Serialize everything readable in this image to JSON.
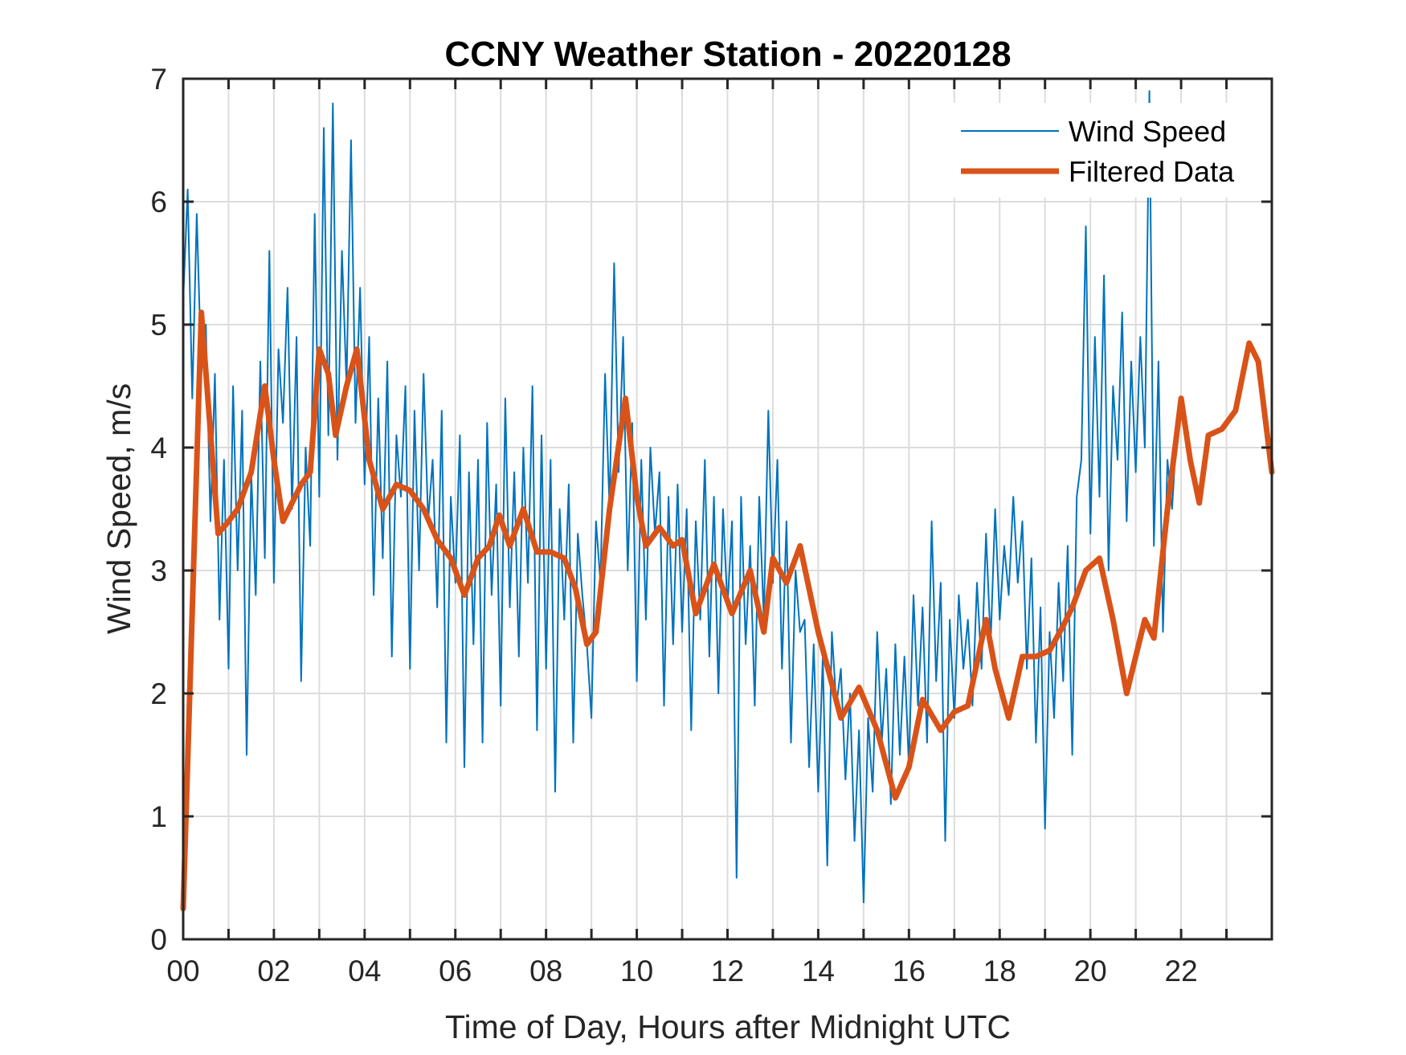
{
  "chart_data": {
    "type": "line",
    "title": "CCNY Weather Station - 20220128",
    "xlabel": "Time of Day, Hours after Midnight UTC",
    "ylabel": "Wind Speed, m/s",
    "xlim": [
      0,
      24
    ],
    "ylim": [
      0,
      7
    ],
    "grid": true,
    "x_ticks": [
      0,
      2,
      4,
      6,
      8,
      10,
      12,
      14,
      16,
      18,
      20,
      22
    ],
    "x_tick_labels": [
      "00",
      "02",
      "04",
      "06",
      "08",
      "10",
      "12",
      "14",
      "16",
      "18",
      "20",
      "22"
    ],
    "x_minor_grid_step": 1,
    "y_ticks": [
      0,
      1,
      2,
      3,
      4,
      5,
      6,
      7
    ],
    "y_tick_labels": [
      "0",
      "1",
      "2",
      "3",
      "4",
      "5",
      "6",
      "7"
    ],
    "legend": {
      "placement": "top-right",
      "entries": [
        "Wind Speed",
        "Filtered Data"
      ]
    },
    "series": [
      {
        "name": "Wind Speed",
        "color": "#0072BD",
        "x_step": 0.1,
        "values": [
          5.2,
          6.1,
          4.4,
          5.9,
          4.6,
          5.0,
          3.4,
          4.6,
          2.6,
          3.9,
          2.2,
          4.5,
          3.0,
          4.3,
          1.5,
          3.8,
          2.8,
          4.7,
          3.1,
          5.6,
          2.9,
          4.8,
          4.2,
          5.3,
          3.5,
          4.9,
          2.1,
          4.0,
          3.2,
          5.9,
          3.6,
          6.6,
          4.1,
          6.8,
          3.9,
          5.6,
          4.5,
          6.5,
          4.2,
          5.3,
          3.7,
          4.9,
          2.8,
          4.4,
          3.1,
          4.7,
          2.3,
          4.1,
          3.6,
          4.5,
          2.2,
          4.3,
          3.0,
          4.6,
          3.4,
          3.9,
          2.7,
          4.3,
          1.6,
          3.6,
          2.9,
          4.1,
          1.4,
          3.8,
          2.4,
          3.9,
          1.6,
          4.2,
          2.8,
          3.7,
          1.9,
          4.4,
          2.7,
          3.8,
          2.3,
          4.0,
          2.9,
          4.5,
          1.7,
          4.1,
          2.2,
          3.9,
          1.2,
          3.5,
          2.6,
          3.7,
          1.6,
          3.3,
          2.8,
          2.4,
          1.8,
          3.4,
          2.9,
          4.6,
          3.5,
          5.5,
          3.8,
          4.9,
          3.0,
          4.2,
          2.1,
          3.9,
          2.6,
          4.0,
          3.3,
          3.8,
          1.9,
          3.6,
          2.4,
          3.7,
          2.5,
          3.5,
          1.7,
          3.4,
          2.6,
          3.9,
          2.3,
          3.6,
          2.0,
          3.5,
          2.7,
          3.4,
          0.5,
          3.6,
          2.4,
          3.2,
          1.9,
          3.6,
          2.6,
          4.3,
          2.9,
          3.9,
          2.2,
          3.4,
          1.6,
          3.0,
          2.5,
          2.6,
          1.4,
          2.4,
          1.2,
          2.3,
          0.6,
          2.5,
          1.9,
          2.2,
          1.3,
          2.0,
          0.8,
          1.7,
          0.3,
          1.8,
          1.2,
          2.5,
          1.6,
          2.2,
          1.1,
          2.4,
          1.5,
          2.3,
          1.4,
          2.8,
          1.9,
          2.7,
          1.6,
          3.4,
          2.1,
          2.9,
          0.8,
          2.6,
          1.8,
          2.8,
          2.2,
          2.6,
          1.9,
          2.9,
          2.2,
          3.3,
          2.4,
          3.5,
          2.6,
          3.2,
          2.8,
          3.6,
          2.9,
          3.4,
          2.2,
          3.1,
          1.6,
          2.7,
          0.9,
          2.5,
          1.8,
          2.9,
          2.1,
          3.2,
          1.5,
          3.6,
          3.9,
          5.8,
          3.3,
          4.9,
          3.6,
          5.4,
          3.0,
          4.5,
          3.9,
          5.1,
          3.4,
          4.7,
          3.8,
          4.9,
          4.0,
          6.9,
          3.2,
          4.7,
          2.5,
          3.9,
          3.5,
          4.1
        ]
      },
      {
        "name": "Filtered Data",
        "color": "#D95319",
        "points": [
          [
            0.0,
            0.25
          ],
          [
            0.4,
            5.1
          ],
          [
            0.77,
            3.3
          ],
          [
            1.0,
            3.4
          ],
          [
            1.2,
            3.5
          ],
          [
            1.5,
            3.8
          ],
          [
            1.8,
            4.5
          ],
          [
            2.0,
            3.9
          ],
          [
            2.2,
            3.4
          ],
          [
            2.6,
            3.7
          ],
          [
            2.8,
            3.8
          ],
          [
            3.0,
            4.8
          ],
          [
            3.2,
            4.6
          ],
          [
            3.36,
            4.1
          ],
          [
            3.6,
            4.5
          ],
          [
            3.83,
            4.8
          ],
          [
            4.1,
            3.9
          ],
          [
            4.4,
            3.5
          ],
          [
            4.7,
            3.7
          ],
          [
            5.0,
            3.65
          ],
          [
            5.3,
            3.5
          ],
          [
            5.6,
            3.25
          ],
          [
            5.9,
            3.1
          ],
          [
            6.2,
            2.8
          ],
          [
            6.5,
            3.1
          ],
          [
            6.75,
            3.2
          ],
          [
            6.97,
            3.45
          ],
          [
            7.2,
            3.2
          ],
          [
            7.5,
            3.5
          ],
          [
            7.8,
            3.15
          ],
          [
            8.1,
            3.15
          ],
          [
            8.4,
            3.1
          ],
          [
            8.65,
            2.85
          ],
          [
            8.9,
            2.4
          ],
          [
            9.1,
            2.5
          ],
          [
            9.4,
            3.5
          ],
          [
            9.75,
            4.4
          ],
          [
            10.0,
            3.6
          ],
          [
            10.2,
            3.2
          ],
          [
            10.5,
            3.35
          ],
          [
            10.8,
            3.2
          ],
          [
            11.0,
            3.25
          ],
          [
            11.3,
            2.65
          ],
          [
            11.7,
            3.05
          ],
          [
            12.1,
            2.65
          ],
          [
            12.5,
            3.0
          ],
          [
            12.8,
            2.5
          ],
          [
            13.0,
            3.1
          ],
          [
            13.3,
            2.9
          ],
          [
            13.6,
            3.2
          ],
          [
            14.0,
            2.5
          ],
          [
            14.5,
            1.8
          ],
          [
            14.9,
            2.05
          ],
          [
            15.3,
            1.7
          ],
          [
            15.7,
            1.15
          ],
          [
            16.0,
            1.4
          ],
          [
            16.3,
            1.95
          ],
          [
            16.7,
            1.7
          ],
          [
            17.0,
            1.85
          ],
          [
            17.3,
            1.9
          ],
          [
            17.7,
            2.6
          ],
          [
            17.9,
            2.2
          ],
          [
            18.2,
            1.8
          ],
          [
            18.5,
            2.3
          ],
          [
            18.8,
            2.3
          ],
          [
            19.1,
            2.35
          ],
          [
            19.4,
            2.55
          ],
          [
            19.6,
            2.7
          ],
          [
            19.9,
            3.0
          ],
          [
            20.2,
            3.1
          ],
          [
            20.5,
            2.6
          ],
          [
            20.8,
            2.0
          ],
          [
            21.0,
            2.3
          ],
          [
            21.2,
            2.6
          ],
          [
            21.4,
            2.45
          ],
          [
            21.7,
            3.5
          ],
          [
            22.0,
            4.4
          ],
          [
            22.2,
            3.9
          ],
          [
            22.4,
            3.55
          ],
          [
            22.6,
            4.1
          ],
          [
            22.9,
            4.15
          ],
          [
            23.2,
            4.3
          ],
          [
            23.5,
            4.85
          ],
          [
            23.7,
            4.7
          ],
          [
            24.0,
            3.8
          ]
        ]
      }
    ]
  }
}
